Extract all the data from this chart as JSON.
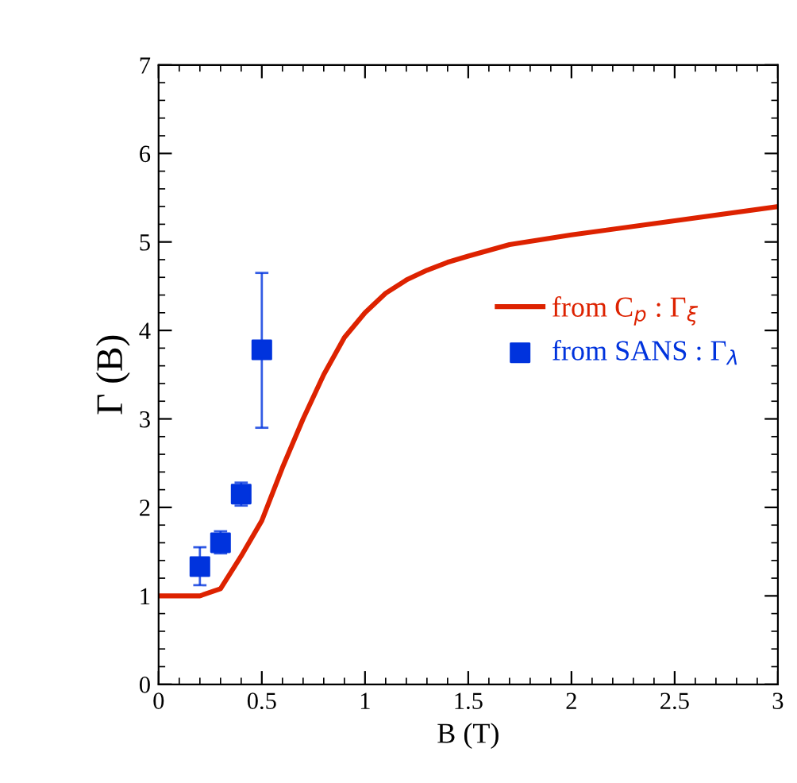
{
  "chart_data": {
    "type": "line",
    "xlabel": "B (T)",
    "ylabel": "Γ (B)",
    "xlim": [
      0,
      3
    ],
    "xticks": [
      0,
      0.5,
      1,
      1.5,
      2,
      2.5,
      3
    ],
    "ylim": [
      0,
      7
    ],
    "yticks": [
      0,
      1,
      2,
      3,
      4,
      5,
      6,
      7
    ],
    "grid": false,
    "legend": "right",
    "series": [
      {
        "name": "from C$_{p}$ : Γ$_{ξ}$",
        "color": "#dd2200",
        "marker": "none",
        "line_style": "solid",
        "x": [
          0,
          0.2,
          0.3,
          0.4,
          0.5,
          0.6,
          0.7,
          0.8,
          0.9,
          1.0,
          1.1,
          1.2,
          1.3,
          1.4,
          1.5,
          1.7,
          2.0,
          2.5,
          3.0
        ],
        "values": [
          1,
          1,
          1.08,
          1.45,
          1.85,
          2.45,
          3.0,
          3.5,
          3.92,
          4.2,
          4.42,
          4.57,
          4.68,
          4.77,
          4.84,
          4.97,
          5.08,
          5.24,
          5.4
        ]
      },
      {
        "name": "from SANS : Γ$_{λ}$",
        "type": "scatter",
        "color": "#0033dd",
        "marker": "square",
        "x": [
          0.2,
          0.3,
          0.4,
          0.5
        ],
        "values": [
          1.33,
          1.6,
          2.15,
          3.78
        ],
        "errors": [
          [
            1.12,
            1.55
          ],
          [
            1.48,
            1.73
          ],
          [
            2.02,
            2.28
          ],
          [
            2.9,
            4.65
          ]
        ]
      }
    ]
  }
}
